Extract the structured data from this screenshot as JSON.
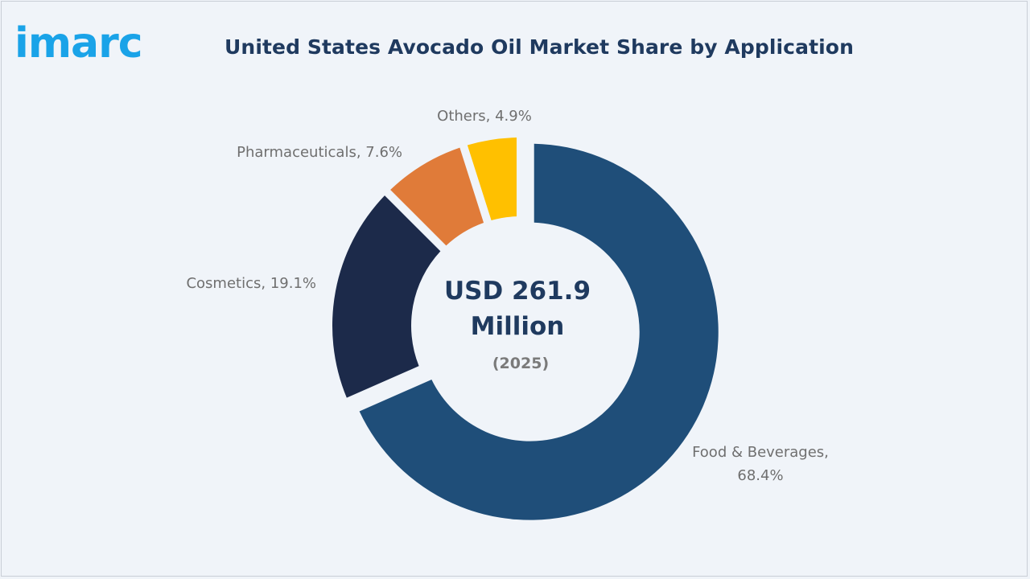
{
  "brand": {
    "logo_text": "imarc",
    "logo_color": "#1aa3e8"
  },
  "chart_data": {
    "type": "pie",
    "title": "United States Avocado Oil Market Share by Application",
    "center_value": "USD 261.9",
    "center_unit": "Million",
    "center_year": "(2025)",
    "slices": [
      {
        "name": "Food & Beverages",
        "value": 68.4,
        "label_lines": [
          "Food & Beverages,",
          "68.4%"
        ],
        "color": "#1f4e79"
      },
      {
        "name": "Cosmetics",
        "value": 19.1,
        "label_lines": [
          "Cosmetics, 19.1%"
        ],
        "color": "#1c2a4a"
      },
      {
        "name": "Pharmaceuticals",
        "value": 7.6,
        "label_lines": [
          "Pharmaceuticals, 7.6%"
        ],
        "color": "#e07b39"
      },
      {
        "name": "Others",
        "value": 4.9,
        "label_lines": [
          "Others, 4.9%"
        ],
        "color": "#ffc000"
      }
    ]
  }
}
